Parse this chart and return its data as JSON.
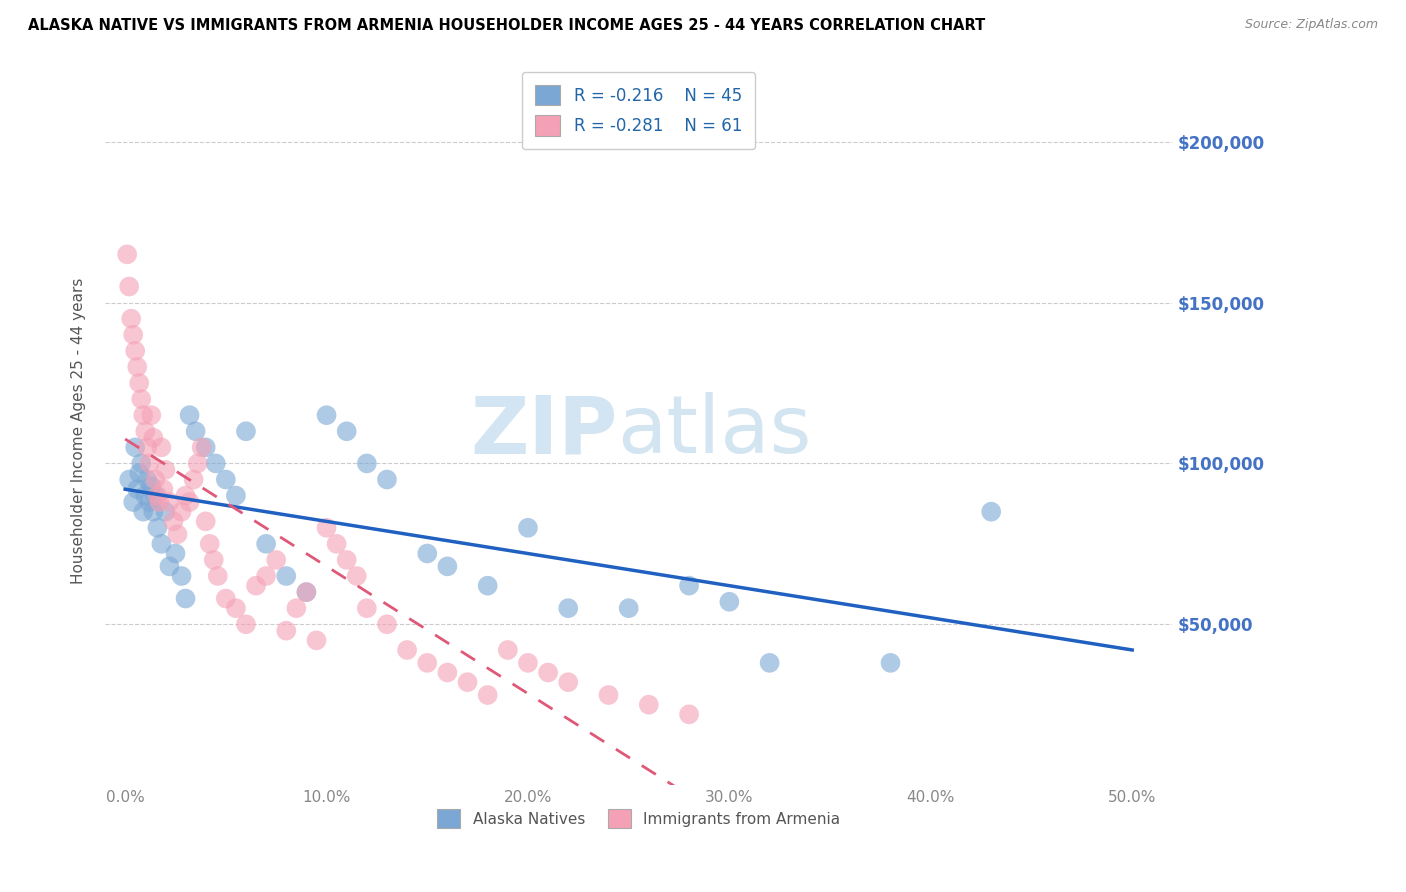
{
  "title": "ALASKA NATIVE VS IMMIGRANTS FROM ARMENIA HOUSEHOLDER INCOME AGES 25 - 44 YEARS CORRELATION CHART",
  "source": "Source: ZipAtlas.com",
  "ylabel": "Householder Income Ages 25 - 44 years",
  "xlabel_ticks": [
    "0.0%",
    "10.0%",
    "20.0%",
    "30.0%",
    "40.0%",
    "50.0%"
  ],
  "xlabel_vals": [
    0.0,
    0.1,
    0.2,
    0.3,
    0.4,
    0.5
  ],
  "ytick_labels": [
    "$50,000",
    "$100,000",
    "$150,000",
    "$200,000"
  ],
  "ytick_vals": [
    50000,
    100000,
    150000,
    200000
  ],
  "ylim": [
    0,
    220000
  ],
  "xlim": [
    -0.01,
    0.52
  ],
  "legend_label1": "Alaska Natives",
  "legend_label2": "Immigrants from Armenia",
  "legend_r1": "-0.216",
  "legend_n1": "45",
  "legend_r2": "-0.281",
  "legend_n2": "61",
  "blue_color": "#7ba7d4",
  "pink_color": "#f4a0b5",
  "line_blue": "#2060c0",
  "line_pink": "#e05878",
  "alaska_x": [
    0.002,
    0.004,
    0.005,
    0.006,
    0.007,
    0.008,
    0.009,
    0.01,
    0.011,
    0.012,
    0.013,
    0.014,
    0.015,
    0.016,
    0.018,
    0.02,
    0.022,
    0.025,
    0.028,
    0.03,
    0.032,
    0.035,
    0.04,
    0.045,
    0.05,
    0.055,
    0.06,
    0.07,
    0.08,
    0.09,
    0.1,
    0.11,
    0.12,
    0.13,
    0.15,
    0.16,
    0.18,
    0.2,
    0.22,
    0.25,
    0.28,
    0.3,
    0.32,
    0.38,
    0.43
  ],
  "alaska_y": [
    95000,
    88000,
    105000,
    92000,
    97000,
    100000,
    85000,
    90000,
    95000,
    88000,
    93000,
    85000,
    90000,
    80000,
    75000,
    85000,
    68000,
    72000,
    65000,
    58000,
    115000,
    110000,
    105000,
    100000,
    95000,
    90000,
    110000,
    75000,
    65000,
    60000,
    115000,
    110000,
    100000,
    95000,
    72000,
    68000,
    62000,
    80000,
    55000,
    55000,
    62000,
    57000,
    38000,
    38000,
    85000
  ],
  "armenia_x": [
    0.001,
    0.002,
    0.003,
    0.004,
    0.005,
    0.006,
    0.007,
    0.008,
    0.009,
    0.01,
    0.011,
    0.012,
    0.013,
    0.014,
    0.015,
    0.016,
    0.017,
    0.018,
    0.019,
    0.02,
    0.022,
    0.024,
    0.026,
    0.028,
    0.03,
    0.032,
    0.034,
    0.036,
    0.038,
    0.04,
    0.042,
    0.044,
    0.046,
    0.05,
    0.055,
    0.06,
    0.065,
    0.07,
    0.075,
    0.08,
    0.085,
    0.09,
    0.095,
    0.1,
    0.105,
    0.11,
    0.115,
    0.12,
    0.13,
    0.14,
    0.15,
    0.16,
    0.17,
    0.18,
    0.19,
    0.2,
    0.21,
    0.22,
    0.24,
    0.26,
    0.28
  ],
  "armenia_y": [
    165000,
    155000,
    145000,
    140000,
    135000,
    130000,
    125000,
    120000,
    115000,
    110000,
    105000,
    100000,
    115000,
    108000,
    95000,
    90000,
    88000,
    105000,
    92000,
    98000,
    88000,
    82000,
    78000,
    85000,
    90000,
    88000,
    95000,
    100000,
    105000,
    82000,
    75000,
    70000,
    65000,
    58000,
    55000,
    50000,
    62000,
    65000,
    70000,
    48000,
    55000,
    60000,
    45000,
    80000,
    75000,
    70000,
    65000,
    55000,
    50000,
    42000,
    38000,
    35000,
    32000,
    28000,
    42000,
    38000,
    35000,
    32000,
    28000,
    25000,
    22000
  ]
}
